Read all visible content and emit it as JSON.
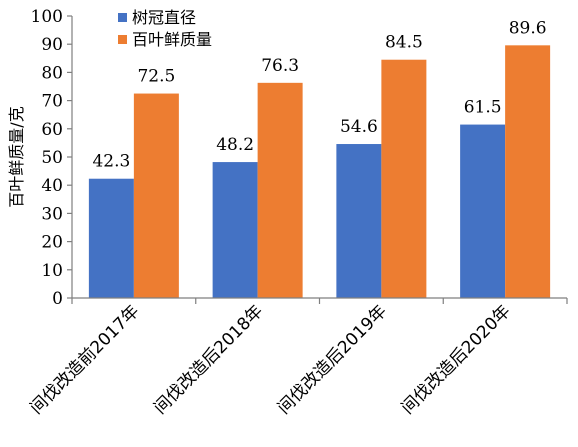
{
  "chart_data": {
    "type": "bar",
    "categories": [
      "间伐改造前2017年",
      "间伐改造后2018年",
      "间伐改造后2019年",
      "间伐改造后2020年"
    ],
    "series": [
      {
        "name": "树冠直径",
        "values": [
          42.3,
          48.2,
          54.6,
          61.5
        ],
        "color": "#4472C4"
      },
      {
        "name": "百叶鲜质量",
        "values": [
          72.5,
          76.3,
          84.5,
          89.6
        ],
        "color": "#ED7D31"
      }
    ],
    "title": "",
    "xlabel": "",
    "ylabel": "百叶鲜质量/克",
    "ylim": [
      0,
      100
    ],
    "yticks": [
      0,
      10,
      20,
      30,
      40,
      50,
      60,
      70,
      80,
      90,
      100
    ],
    "grid": false,
    "legend_position": "top-left"
  }
}
